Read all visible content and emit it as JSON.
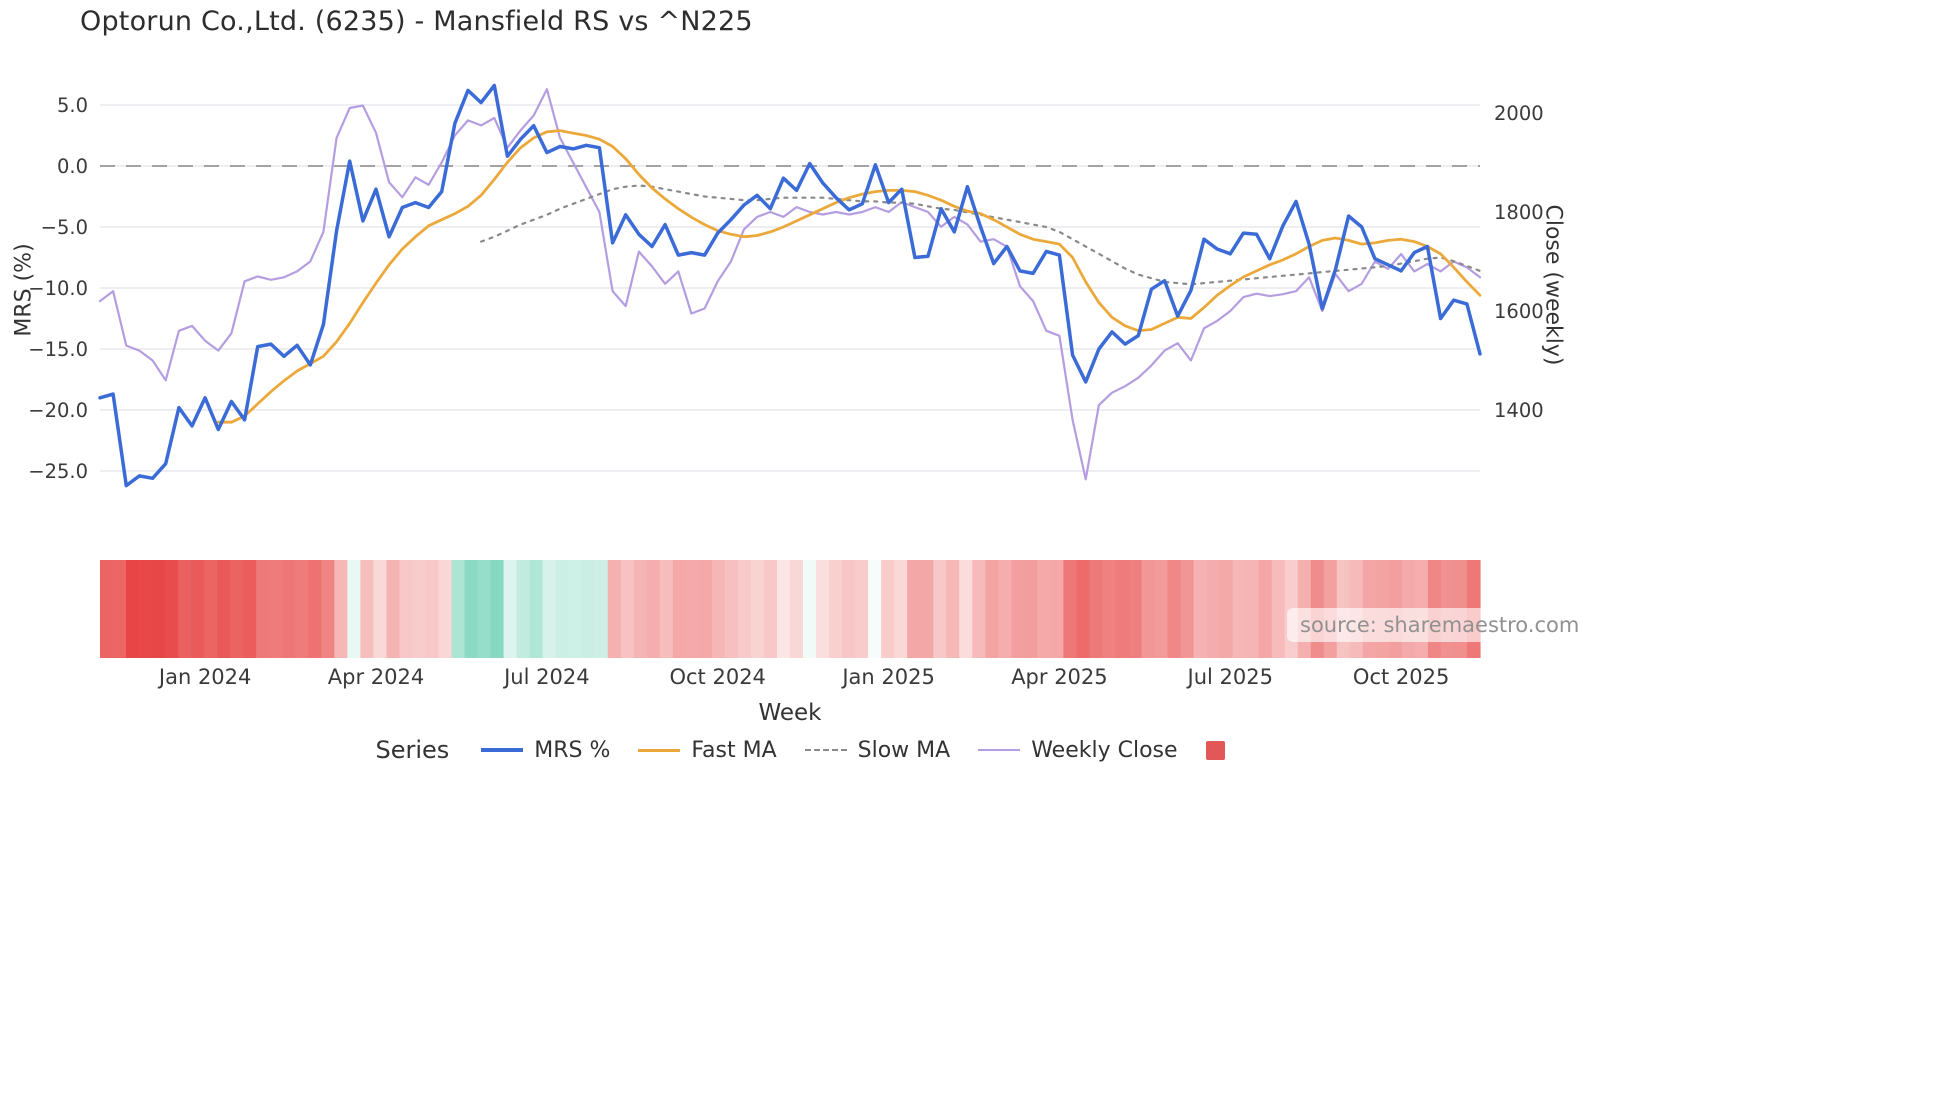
{
  "title": "Optorun Co.,Ltd. (6235) - Mansfield RS vs ^N225",
  "watermark": "source: sharemaestro.com",
  "chart_data": {
    "type": "line",
    "title": "Optorun Co.,Ltd. (6235) - Mansfield RS vs ^N225",
    "x_axis": {
      "title": "Week",
      "unit": "week_index",
      "n_points": 106,
      "ticks": [
        {
          "label": "Jan 2024",
          "week": 8
        },
        {
          "label": "Apr 2024",
          "week": 21
        },
        {
          "label": "Jul 2024",
          "week": 34
        },
        {
          "label": "Oct 2024",
          "week": 47
        },
        {
          "label": "Jan 2025",
          "week": 60
        },
        {
          "label": "Apr 2025",
          "week": 73
        },
        {
          "label": "Jul 2025",
          "week": 86
        },
        {
          "label": "Oct 2025",
          "week": 99
        }
      ]
    },
    "left_axis": {
      "title": "MRS (%)",
      "range": [
        -27.5,
        7.5
      ],
      "zero_line": true,
      "ticks": [
        {
          "label": "5.0",
          "value": 5
        },
        {
          "label": "0.0",
          "value": 0
        },
        {
          "label": "−5.0",
          "value": -5
        },
        {
          "label": "−10.0",
          "value": -10
        },
        {
          "label": "−15.0",
          "value": -15
        },
        {
          "label": "−20.0",
          "value": -20
        },
        {
          "label": "−25.0",
          "value": -25
        }
      ]
    },
    "right_axis": {
      "title": "Close (weekly)",
      "range": [
        1230,
        2070
      ],
      "ticks": [
        {
          "label": "2000",
          "value": 2000
        },
        {
          "label": "1800",
          "value": 1800
        },
        {
          "label": "1600",
          "value": 1600
        },
        {
          "label": "1400",
          "value": 1400
        }
      ]
    },
    "series": [
      {
        "name": "MRS %",
        "axis": "left",
        "color": "#3b6bd6",
        "width": 3.5,
        "dash": null,
        "z": 4,
        "start_week": 0,
        "values": [
          -19.0,
          -18.7,
          -26.2,
          -25.4,
          -25.6,
          -24.4,
          -19.8,
          -21.3,
          -19.0,
          -21.6,
          -19.3,
          -20.8,
          -14.8,
          -14.6,
          -15.6,
          -14.7,
          -16.3,
          -13.0,
          -5.3,
          0.4,
          -4.5,
          -1.9,
          -5.8,
          -3.4,
          -3.0,
          -3.4,
          -2.1,
          3.5,
          6.2,
          5.2,
          6.6,
          0.8,
          2.2,
          3.3,
          1.1,
          1.6,
          1.4,
          1.7,
          1.5,
          -6.3,
          -4.0,
          -5.6,
          -6.6,
          -4.8,
          -7.3,
          -7.1,
          -7.3,
          -5.5,
          -4.4,
          -3.2,
          -2.4,
          -3.5,
          -1.0,
          -2.0,
          0.2,
          -1.4,
          -2.6,
          -3.6,
          -3.1,
          0.1,
          -3.0,
          -1.9,
          -7.5,
          -7.4,
          -3.5,
          -5.4,
          -1.7,
          -5.0,
          -8.0,
          -6.6,
          -8.6,
          -8.8,
          -7.0,
          -7.3,
          -15.5,
          -17.7,
          -15.0,
          -13.6,
          -14.6,
          -13.9,
          -10.1,
          -9.4,
          -12.3,
          -10.2,
          -6.0,
          -6.8,
          -7.2,
          -5.5,
          -5.6,
          -7.6,
          -4.9,
          -2.9,
          -6.4,
          -11.7,
          -8.5,
          -4.1,
          -5.0,
          -7.6,
          -8.1,
          -8.6,
          -7.1,
          -6.6,
          -12.5,
          -11.0,
          -11.3,
          -15.4
        ]
      },
      {
        "name": "Fast MA",
        "axis": "left",
        "color": "#eca93b",
        "width": 2.8,
        "dash": null,
        "z": 3,
        "start_week": 9,
        "values": [
          -21.0,
          -21.0,
          -20.5,
          -19.5,
          -18.5,
          -17.6,
          -16.8,
          -16.2,
          -15.6,
          -14.4,
          -12.9,
          -11.2,
          -9.6,
          -8.1,
          -6.8,
          -5.8,
          -4.9,
          -4.4,
          -3.9,
          -3.3,
          -2.4,
          -1.1,
          0.3,
          1.5,
          2.3,
          2.8,
          2.9,
          2.7,
          2.5,
          2.2,
          1.6,
          0.6,
          -0.7,
          -1.8,
          -2.7,
          -3.5,
          -4.2,
          -4.8,
          -5.3,
          -5.6,
          -5.8,
          -5.7,
          -5.4,
          -5.0,
          -4.5,
          -4.0,
          -3.5,
          -3.0,
          -2.6,
          -2.3,
          -2.1,
          -2.0,
          -2.0,
          -2.1,
          -2.4,
          -2.8,
          -3.3,
          -3.7,
          -3.9,
          -4.4,
          -5.0,
          -5.6,
          -6.0,
          -6.2,
          -6.4,
          -7.5,
          -9.5,
          -11.2,
          -12.4,
          -13.1,
          -13.5,
          -13.4,
          -12.9,
          -12.4,
          -12.5,
          -11.6,
          -10.6,
          -9.8,
          -9.1,
          -8.6,
          -8.1,
          -7.7,
          -7.2,
          -6.6,
          -6.1,
          -5.9,
          -6.1,
          -6.4,
          -6.3,
          -6.1,
          -6.0,
          -6.2,
          -6.6,
          -7.2,
          -8.3,
          -9.5,
          -10.6
        ]
      },
      {
        "name": "Slow MA",
        "axis": "left",
        "color": "#8a8a8a",
        "width": 2.2,
        "dash": "3 6",
        "z": 2,
        "start_week": 29,
        "values": [
          -6.2,
          -5.8,
          -5.3,
          -4.8,
          -4.4,
          -4.0,
          -3.5,
          -3.1,
          -2.7,
          -2.3,
          -1.9,
          -1.7,
          -1.6,
          -1.7,
          -1.9,
          -2.1,
          -2.3,
          -2.5,
          -2.6,
          -2.7,
          -2.8,
          -2.8,
          -2.7,
          -2.6,
          -2.6,
          -2.6,
          -2.6,
          -2.7,
          -2.8,
          -2.9,
          -2.9,
          -3.0,
          -3.0,
          -3.1,
          -3.3,
          -3.5,
          -3.6,
          -3.8,
          -4.0,
          -4.2,
          -4.4,
          -4.6,
          -4.8,
          -5.0,
          -5.4,
          -6.0,
          -6.6,
          -7.2,
          -7.8,
          -8.4,
          -8.9,
          -9.2,
          -9.5,
          -9.6,
          -9.7,
          -9.6,
          -9.5,
          -9.4,
          -9.3,
          -9.2,
          -9.1,
          -9.0,
          -8.9,
          -8.8,
          -8.7,
          -8.6,
          -8.5,
          -8.4,
          -8.3,
          -8.2,
          -8.0,
          -7.8,
          -7.6,
          -7.5,
          -7.8,
          -8.2,
          -8.6
        ]
      },
      {
        "name": "Weekly Close",
        "axis": "right",
        "color": "#b49de0",
        "width": 2.2,
        "dash": null,
        "z": 1,
        "start_week": 0,
        "values": [
          1620,
          1640,
          1530,
          1520,
          1500,
          1460,
          1560,
          1570,
          1540,
          1520,
          1555,
          1660,
          1670,
          1663,
          1668,
          1680,
          1700,
          1760,
          1950,
          2010,
          2015,
          1960,
          1860,
          1830,
          1870,
          1855,
          1900,
          1955,
          1985,
          1975,
          1990,
          1930,
          1965,
          1995,
          2048,
          1950,
          1900,
          1850,
          1800,
          1640,
          1610,
          1720,
          1690,
          1655,
          1680,
          1595,
          1605,
          1660,
          1700,
          1765,
          1790,
          1800,
          1790,
          1810,
          1800,
          1795,
          1800,
          1795,
          1800,
          1810,
          1800,
          1820,
          1810,
          1800,
          1770,
          1790,
          1775,
          1740,
          1745,
          1730,
          1650,
          1620,
          1560,
          1550,
          1380,
          1260,
          1410,
          1435,
          1448,
          1465,
          1490,
          1520,
          1535,
          1500,
          1565,
          1580,
          1600,
          1628,
          1635,
          1630,
          1634,
          1640,
          1668,
          1600,
          1675,
          1640,
          1655,
          1700,
          1685,
          1715,
          1680,
          1695,
          1680,
          1700,
          1688,
          1668
        ]
      }
    ],
    "heatmap": {
      "source_series": "MRS %",
      "neg_color": "#e84545",
      "pos_color": "#82d7bf",
      "neg_scale": 26,
      "pos_scale": 7,
      "gamma": 0.6
    },
    "legend": {
      "label": "Series",
      "items": [
        {
          "label": "MRS %",
          "swatch": "line",
          "color": "#3b6bd6",
          "thick": 4
        },
        {
          "label": "Fast MA",
          "swatch": "line",
          "color": "#eca93b",
          "thick": 3
        },
        {
          "label": "Slow MA",
          "swatch": "dashed",
          "color": "#8a8a8a",
          "thick": 2.5
        },
        {
          "label": "Weekly Close",
          "swatch": "line",
          "color": "#b49de0",
          "thick": 2.5
        },
        {
          "label": "",
          "swatch": "square",
          "color": "#e25757"
        }
      ]
    },
    "grid": true,
    "legend_position": "bottom-center"
  }
}
